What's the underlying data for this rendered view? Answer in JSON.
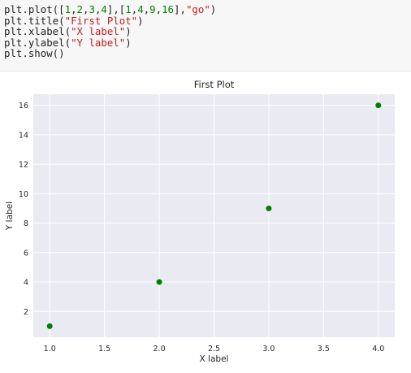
{
  "code": {
    "lines": [
      [
        [
          "plt.plot(",
          "plain"
        ],
        [
          "[",
          "plain"
        ],
        [
          "1",
          "num"
        ],
        [
          ",",
          "plain"
        ],
        [
          "2",
          "num"
        ],
        [
          ",",
          "plain"
        ],
        [
          "3",
          "num"
        ],
        [
          ",",
          "plain"
        ],
        [
          "4",
          "num"
        ],
        [
          "],[",
          "plain"
        ],
        [
          "1",
          "num"
        ],
        [
          ",",
          "plain"
        ],
        [
          "4",
          "num"
        ],
        [
          ",",
          "plain"
        ],
        [
          "9",
          "num"
        ],
        [
          ",",
          "plain"
        ],
        [
          "16",
          "num"
        ],
        [
          "],",
          "plain"
        ],
        [
          "\"go\"",
          "str"
        ],
        [
          ")",
          "plain"
        ]
      ],
      [
        [
          "plt.title(",
          "plain"
        ],
        [
          "\"First Plot\"",
          "str"
        ],
        [
          ")",
          "plain"
        ]
      ],
      [
        [
          "plt.xlabel(",
          "plain"
        ],
        [
          "\"X label\"",
          "str"
        ],
        [
          ")",
          "plain"
        ]
      ],
      [
        [
          "plt.ylabel(",
          "plain"
        ],
        [
          "\"Y label\"",
          "str"
        ],
        [
          ")",
          "plain"
        ]
      ],
      [
        [
          "plt.show()",
          "plain"
        ]
      ]
    ]
  },
  "chart_data": {
    "type": "scatter",
    "title": "First Plot",
    "xlabel": "X label",
    "ylabel": "Y label",
    "x": [
      1,
      2,
      3,
      4
    ],
    "y": [
      1,
      4,
      9,
      16
    ],
    "marker_color": "#007f00",
    "xlim": [
      0.85,
      4.15
    ],
    "ylim": [
      0.25,
      16.75
    ],
    "xticks": [
      1.0,
      1.5,
      2.0,
      2.5,
      3.0,
      3.5,
      4.0
    ],
    "xtick_labels": [
      "1.0",
      "1.5",
      "2.0",
      "2.5",
      "3.0",
      "3.5",
      "4.0"
    ],
    "yticks": [
      2,
      4,
      6,
      8,
      10,
      12,
      14,
      16
    ],
    "ytick_labels": [
      "2",
      "4",
      "6",
      "8",
      "10",
      "12",
      "14",
      "16"
    ],
    "grid": true,
    "background": "#eaeaf2",
    "grid_color": "#ffffff"
  }
}
